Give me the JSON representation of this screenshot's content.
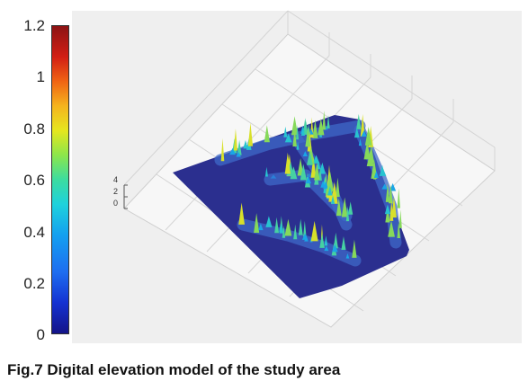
{
  "caption": "Fig.7 Digital elevation model of the study area",
  "chart_data": {
    "type": "surface",
    "title": "",
    "colorbar": {
      "ticks": [
        "0",
        "0.2",
        "0.4",
        "0.6",
        "0.8",
        "1",
        "1.2"
      ],
      "range": [
        0,
        1.2
      ],
      "colormap": "jet"
    },
    "z_axis": {
      "ticks": [
        "0",
        "2",
        "4"
      ],
      "range": [
        0,
        4
      ]
    },
    "grid": true,
    "surface_color_low": "#2b2f8f",
    "surface_color_peak": "#e6e61e"
  }
}
